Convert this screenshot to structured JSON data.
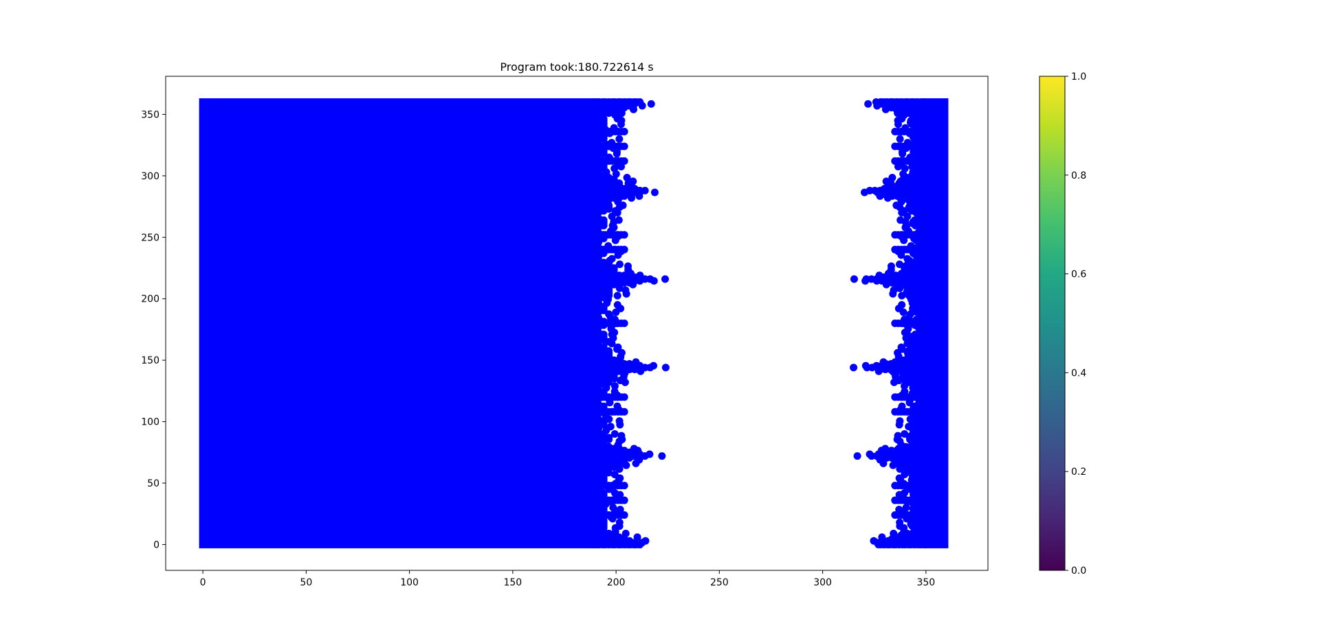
{
  "chart_data": {
    "type": "scatter",
    "title": "Program took:180.722614 s",
    "xlabel": "",
    "ylabel": "",
    "xlim": [
      -18,
      380
    ],
    "ylim": [
      -21,
      381
    ],
    "x_ticks": [
      0,
      50,
      100,
      150,
      200,
      250,
      300,
      350
    ],
    "y_ticks": [
      0,
      50,
      100,
      150,
      200,
      250,
      300,
      350
    ],
    "grid": false,
    "marker_color": "#0000ff",
    "series": [
      {
        "values": {
          "solid_block": {
            "x_range": [
              0,
              189
            ],
            "y_range": [
              0,
              360
            ]
          },
          "left_fringe_x_max": 212,
          "right_cluster": {
            "x_range": [
              328,
              359
            ],
            "y_range": [
              0,
              360
            ]
          },
          "peak_y_values": [
            0,
            72,
            144,
            216,
            288,
            360
          ],
          "secondary_y_values": [
            24,
            36,
            48,
            108,
            120,
            180,
            240,
            252,
            312,
            324,
            336
          ]
        }
      }
    ],
    "colorbar": {
      "colormap": "viridis",
      "range": [
        0.0,
        1.0
      ],
      "ticks": [
        "0.0",
        "0.2",
        "0.4",
        "0.6",
        "0.8",
        "1.0"
      ]
    }
  }
}
